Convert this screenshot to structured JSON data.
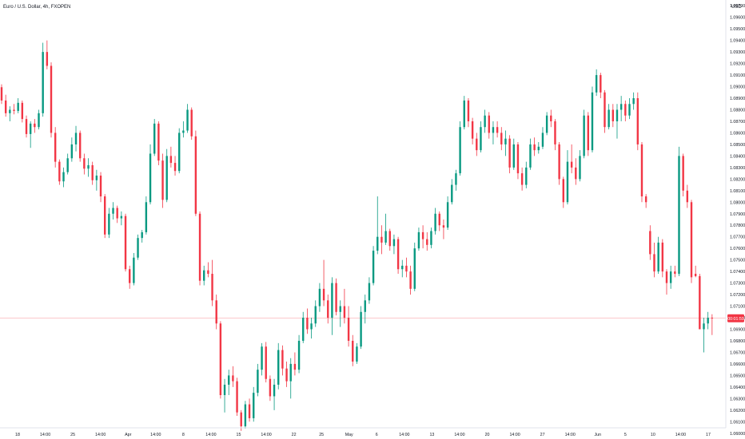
{
  "chart_data": {
    "type": "candlestick",
    "title": "Euro / U.S. Dollar, 4h, FXOPEN",
    "currency": "USD",
    "ylim": [
      1.0595,
      1.0975
    ],
    "grid": false,
    "colors": {
      "up": "#089981",
      "down": "#f23645",
      "price_line": "#f23645",
      "text": "#131722"
    },
    "y_ticks": [
      "1.09700",
      "1.09600",
      "1.09500",
      "1.09400",
      "1.09300",
      "1.09200",
      "1.09100",
      "1.09000",
      "1.08900",
      "1.08800",
      "1.08700",
      "1.08600",
      "1.08500",
      "1.08400",
      "1.08300",
      "1.08200",
      "1.08100",
      "1.08000",
      "1.07900",
      "1.07800",
      "1.07700",
      "1.07600",
      "1.07500",
      "1.07400",
      "1.07300",
      "1.07200",
      "1.07100",
      "1.07000",
      "1.06900",
      "1.06800",
      "1.06700",
      "1.06600",
      "1.06500",
      "1.06400",
      "1.06300",
      "1.06200",
      "1.06100",
      "1.06000",
      "1.05900",
      "1.05800"
    ],
    "x_ticks": [
      "18",
      "14:00",
      "25",
      "14:00",
      "Apr",
      "14:00",
      "8",
      "14:00",
      "15",
      "14:00",
      "22",
      "25",
      "May",
      "6",
      "14:00",
      "13",
      "14:00",
      "20",
      "14:00",
      "27",
      "14:00",
      "Jun",
      "5",
      "10",
      "14:00",
      "17"
    ],
    "last_price": {
      "value": 1.06995,
      "countdown": "00:01:59"
    },
    "candles": [
      {
        "o": 1.08995,
        "h": 1.0902,
        "l": 1.0885,
        "c": 1.0888
      },
      {
        "o": 1.0888,
        "h": 1.0893,
        "l": 1.0874,
        "c": 1.0877
      },
      {
        "o": 1.0877,
        "h": 1.0883,
        "l": 1.087,
        "c": 1.088
      },
      {
        "o": 1.088,
        "h": 1.0885,
        "l": 1.0876,
        "c": 1.0879
      },
      {
        "o": 1.0879,
        "h": 1.089,
        "l": 1.0877,
        "c": 1.0886
      },
      {
        "o": 1.0886,
        "h": 1.0888,
        "l": 1.0869,
        "c": 1.0872
      },
      {
        "o": 1.0872,
        "h": 1.0875,
        "l": 1.0856,
        "c": 1.0859
      },
      {
        "o": 1.0859,
        "h": 1.087,
        "l": 1.0847,
        "c": 1.0868
      },
      {
        "o": 1.0868,
        "h": 1.0872,
        "l": 1.086,
        "c": 1.0865
      },
      {
        "o": 1.0865,
        "h": 1.088,
        "l": 1.0863,
        "c": 1.0877
      },
      {
        "o": 1.0877,
        "h": 1.0938,
        "l": 1.0874,
        "c": 1.093
      },
      {
        "o": 1.093,
        "h": 1.094,
        "l": 1.0915,
        "c": 1.0918
      },
      {
        "o": 1.0918,
        "h": 1.0921,
        "l": 1.0856,
        "c": 1.086
      },
      {
        "o": 1.086,
        "h": 1.0865,
        "l": 1.083,
        "c": 1.0835
      },
      {
        "o": 1.0835,
        "h": 1.0837,
        "l": 1.0815,
        "c": 1.0818
      },
      {
        "o": 1.0818,
        "h": 1.083,
        "l": 1.0813,
        "c": 1.0826
      },
      {
        "o": 1.0826,
        "h": 1.0842,
        "l": 1.0824,
        "c": 1.0838
      },
      {
        "o": 1.0838,
        "h": 1.0856,
        "l": 1.0835,
        "c": 1.085
      },
      {
        "o": 1.085,
        "h": 1.0866,
        "l": 1.0844,
        "c": 1.086
      },
      {
        "o": 1.086,
        "h": 1.0862,
        "l": 1.0835,
        "c": 1.0838
      },
      {
        "o": 1.0838,
        "h": 1.0842,
        "l": 1.0824,
        "c": 1.0829
      },
      {
        "o": 1.0829,
        "h": 1.0838,
        "l": 1.0822,
        "c": 1.0832
      },
      {
        "o": 1.0832,
        "h": 1.0835,
        "l": 1.0815,
        "c": 1.0819
      },
      {
        "o": 1.0819,
        "h": 1.0828,
        "l": 1.081,
        "c": 1.0823
      },
      {
        "o": 1.0823,
        "h": 1.0826,
        "l": 1.08,
        "c": 1.0805
      },
      {
        "o": 1.0805,
        "h": 1.0807,
        "l": 1.0769,
        "c": 1.0772
      },
      {
        "o": 1.0772,
        "h": 1.0795,
        "l": 1.0769,
        "c": 1.079
      },
      {
        "o": 1.079,
        "h": 1.08,
        "l": 1.0785,
        "c": 1.0795
      },
      {
        "o": 1.0795,
        "h": 1.0797,
        "l": 1.0782,
        "c": 1.0786
      },
      {
        "o": 1.0786,
        "h": 1.0792,
        "l": 1.078,
        "c": 1.0788
      },
      {
        "o": 1.0788,
        "h": 1.079,
        "l": 1.074,
        "c": 1.0742
      },
      {
        "o": 1.0742,
        "h": 1.0745,
        "l": 1.0725,
        "c": 1.073
      },
      {
        "o": 1.073,
        "h": 1.0756,
        "l": 1.0728,
        "c": 1.0752
      },
      {
        "o": 1.0752,
        "h": 1.0772,
        "l": 1.075,
        "c": 1.0769
      },
      {
        "o": 1.0769,
        "h": 1.0776,
        "l": 1.0765,
        "c": 1.0774
      },
      {
        "o": 1.0774,
        "h": 1.0805,
        "l": 1.0772,
        "c": 1.08
      },
      {
        "o": 1.08,
        "h": 1.085,
        "l": 1.0798,
        "c": 1.0842
      },
      {
        "o": 1.0842,
        "h": 1.0872,
        "l": 1.084,
        "c": 1.0868
      },
      {
        "o": 1.0868,
        "h": 1.087,
        "l": 1.0832,
        "c": 1.0836
      },
      {
        "o": 1.0836,
        "h": 1.0842,
        "l": 1.0795,
        "c": 1.0802
      },
      {
        "o": 1.0802,
        "h": 1.0846,
        "l": 1.08,
        "c": 1.084
      },
      {
        "o": 1.084,
        "h": 1.0848,
        "l": 1.083,
        "c": 1.0834
      },
      {
        "o": 1.0834,
        "h": 1.084,
        "l": 1.0823,
        "c": 1.0827
      },
      {
        "o": 1.0827,
        "h": 1.0864,
        "l": 1.0825,
        "c": 1.086
      },
      {
        "o": 1.086,
        "h": 1.087,
        "l": 1.0856,
        "c": 1.0862
      },
      {
        "o": 1.0862,
        "h": 1.0885,
        "l": 1.086,
        "c": 1.088
      },
      {
        "o": 1.088,
        "h": 1.0882,
        "l": 1.0854,
        "c": 1.0857
      },
      {
        "o": 1.0857,
        "h": 1.0862,
        "l": 1.0788,
        "c": 1.079
      },
      {
        "o": 1.079,
        "h": 1.0792,
        "l": 1.0728,
        "c": 1.0732
      },
      {
        "o": 1.0732,
        "h": 1.0745,
        "l": 1.0728,
        "c": 1.0741
      },
      {
        "o": 1.0741,
        "h": 1.0748,
        "l": 1.0735,
        "c": 1.0738
      },
      {
        "o": 1.0738,
        "h": 1.075,
        "l": 1.071,
        "c": 1.0715
      },
      {
        "o": 1.0715,
        "h": 1.072,
        "l": 1.069,
        "c": 1.0695
      },
      {
        "o": 1.0695,
        "h": 1.0697,
        "l": 1.063,
        "c": 1.0633
      },
      {
        "o": 1.0633,
        "h": 1.0647,
        "l": 1.0618,
        "c": 1.0642
      },
      {
        "o": 1.0642,
        "h": 1.0655,
        "l": 1.0633,
        "c": 1.065
      },
      {
        "o": 1.065,
        "h": 1.0658,
        "l": 1.064,
        "c": 1.0645
      },
      {
        "o": 1.0645,
        "h": 1.0648,
        "l": 1.0615,
        "c": 1.0618
      },
      {
        "o": 1.0618,
        "h": 1.062,
        "l": 1.0602,
        "c": 1.0606
      },
      {
        "o": 1.0606,
        "h": 1.0628,
        "l": 1.0604,
        "c": 1.0625
      },
      {
        "o": 1.0625,
        "h": 1.063,
        "l": 1.061,
        "c": 1.0613
      },
      {
        "o": 1.0613,
        "h": 1.064,
        "l": 1.061,
        "c": 1.0635
      },
      {
        "o": 1.0635,
        "h": 1.066,
        "l": 1.0632,
        "c": 1.0655
      },
      {
        "o": 1.0655,
        "h": 1.0678,
        "l": 1.065,
        "c": 1.0675
      },
      {
        "o": 1.0675,
        "h": 1.0679,
        "l": 1.0644,
        "c": 1.0647
      },
      {
        "o": 1.0647,
        "h": 1.065,
        "l": 1.0628,
        "c": 1.0632
      },
      {
        "o": 1.0632,
        "h": 1.0647,
        "l": 1.062,
        "c": 1.0642
      },
      {
        "o": 1.0642,
        "h": 1.0678,
        "l": 1.0638,
        "c": 1.0672
      },
      {
        "o": 1.0672,
        "h": 1.0676,
        "l": 1.065,
        "c": 1.0656
      },
      {
        "o": 1.0656,
        "h": 1.0662,
        "l": 1.064,
        "c": 1.0645
      },
      {
        "o": 1.0645,
        "h": 1.0665,
        "l": 1.063,
        "c": 1.066
      },
      {
        "o": 1.066,
        "h": 1.067,
        "l": 1.065,
        "c": 1.0655
      },
      {
        "o": 1.0655,
        "h": 1.0685,
        "l": 1.0652,
        "c": 1.068
      },
      {
        "o": 1.068,
        "h": 1.0705,
        "l": 1.0678,
        "c": 1.07
      },
      {
        "o": 1.07,
        "h": 1.0708,
        "l": 1.0686,
        "c": 1.069
      },
      {
        "o": 1.069,
        "h": 1.07,
        "l": 1.0682,
        "c": 1.0695
      },
      {
        "o": 1.0695,
        "h": 1.0715,
        "l": 1.0692,
        "c": 1.071
      },
      {
        "o": 1.071,
        "h": 1.073,
        "l": 1.0705,
        "c": 1.0725
      },
      {
        "o": 1.0725,
        "h": 1.075,
        "l": 1.071,
        "c": 1.0715
      },
      {
        "o": 1.0715,
        "h": 1.072,
        "l": 1.0695,
        "c": 1.07
      },
      {
        "o": 1.07,
        "h": 1.0735,
        "l": 1.0685,
        "c": 1.073
      },
      {
        "o": 1.073,
        "h": 1.0734,
        "l": 1.0702,
        "c": 1.0705
      },
      {
        "o": 1.0705,
        "h": 1.0715,
        "l": 1.0692,
        "c": 1.071
      },
      {
        "o": 1.071,
        "h": 1.0725,
        "l": 1.0695,
        "c": 1.07
      },
      {
        "o": 1.07,
        "h": 1.071,
        "l": 1.0675,
        "c": 1.068
      },
      {
        "o": 1.068,
        "h": 1.0685,
        "l": 1.0658,
        "c": 1.0662
      },
      {
        "o": 1.0662,
        "h": 1.0678,
        "l": 1.066,
        "c": 1.0675
      },
      {
        "o": 1.0675,
        "h": 1.071,
        "l": 1.0673,
        "c": 1.0705
      },
      {
        "o": 1.0705,
        "h": 1.072,
        "l": 1.0695,
        "c": 1.0715
      },
      {
        "o": 1.0715,
        "h": 1.0735,
        "l": 1.0712,
        "c": 1.073
      },
      {
        "o": 1.073,
        "h": 1.0762,
        "l": 1.0728,
        "c": 1.0758
      },
      {
        "o": 1.0758,
        "h": 1.0805,
        "l": 1.0755,
        "c": 1.077
      },
      {
        "o": 1.077,
        "h": 1.078,
        "l": 1.0755,
        "c": 1.0765
      },
      {
        "o": 1.0765,
        "h": 1.079,
        "l": 1.0763,
        "c": 1.0775
      },
      {
        "o": 1.0775,
        "h": 1.0777,
        "l": 1.0758,
        "c": 1.0762
      },
      {
        "o": 1.0762,
        "h": 1.0772,
        "l": 1.0755,
        "c": 1.0768
      },
      {
        "o": 1.0768,
        "h": 1.077,
        "l": 1.0738,
        "c": 1.0742
      },
      {
        "o": 1.0742,
        "h": 1.075,
        "l": 1.0735,
        "c": 1.0745
      },
      {
        "o": 1.0745,
        "h": 1.0752,
        "l": 1.0735,
        "c": 1.074
      },
      {
        "o": 1.074,
        "h": 1.0745,
        "l": 1.072,
        "c": 1.0725
      },
      {
        "o": 1.0725,
        "h": 1.0765,
        "l": 1.0723,
        "c": 1.076
      },
      {
        "o": 1.076,
        "h": 1.0778,
        "l": 1.0758,
        "c": 1.0774
      },
      {
        "o": 1.0774,
        "h": 1.078,
        "l": 1.076,
        "c": 1.0768
      },
      {
        "o": 1.0768,
        "h": 1.0774,
        "l": 1.0758,
        "c": 1.0763
      },
      {
        "o": 1.0763,
        "h": 1.0778,
        "l": 1.076,
        "c": 1.0775
      },
      {
        "o": 1.0775,
        "h": 1.0795,
        "l": 1.0772,
        "c": 1.079
      },
      {
        "o": 1.079,
        "h": 1.0792,
        "l": 1.0775,
        "c": 1.078
      },
      {
        "o": 1.078,
        "h": 1.0785,
        "l": 1.0768,
        "c": 1.0778
      },
      {
        "o": 1.0778,
        "h": 1.0805,
        "l": 1.0776,
        "c": 1.08
      },
      {
        "o": 1.08,
        "h": 1.082,
        "l": 1.0798,
        "c": 1.0815
      },
      {
        "o": 1.0815,
        "h": 1.0828,
        "l": 1.081,
        "c": 1.0825
      },
      {
        "o": 1.0825,
        "h": 1.087,
        "l": 1.0823,
        "c": 1.0865
      },
      {
        "o": 1.0865,
        "h": 1.0892,
        "l": 1.0863,
        "c": 1.0888
      },
      {
        "o": 1.0888,
        "h": 1.089,
        "l": 1.0865,
        "c": 1.087
      },
      {
        "o": 1.087,
        "h": 1.0873,
        "l": 1.085,
        "c": 1.0855
      },
      {
        "o": 1.0855,
        "h": 1.086,
        "l": 1.084,
        "c": 1.0845
      },
      {
        "o": 1.0845,
        "h": 1.087,
        "l": 1.0843,
        "c": 1.0865
      },
      {
        "o": 1.0865,
        "h": 1.088,
        "l": 1.086,
        "c": 1.0875
      },
      {
        "o": 1.0875,
        "h": 1.0878,
        "l": 1.0855,
        "c": 1.086
      },
      {
        "o": 1.086,
        "h": 1.087,
        "l": 1.085,
        "c": 1.0865
      },
      {
        "o": 1.0865,
        "h": 1.087,
        "l": 1.0856,
        "c": 1.086
      },
      {
        "o": 1.086,
        "h": 1.0865,
        "l": 1.0845,
        "c": 1.085
      },
      {
        "o": 1.085,
        "h": 1.0862,
        "l": 1.084,
        "c": 1.0855
      },
      {
        "o": 1.0855,
        "h": 1.0858,
        "l": 1.0825,
        "c": 1.083
      },
      {
        "o": 1.083,
        "h": 1.0855,
        "l": 1.0828,
        "c": 1.085
      },
      {
        "o": 1.085,
        "h": 1.0852,
        "l": 1.082,
        "c": 1.0825
      },
      {
        "o": 1.0825,
        "h": 1.083,
        "l": 1.081,
        "c": 1.0815
      },
      {
        "o": 1.0815,
        "h": 1.0835,
        "l": 1.0812,
        "c": 1.083
      },
      {
        "o": 1.083,
        "h": 1.0855,
        "l": 1.0828,
        "c": 1.085
      },
      {
        "o": 1.085,
        "h": 1.0856,
        "l": 1.084,
        "c": 1.0845
      },
      {
        "o": 1.0845,
        "h": 1.0852,
        "l": 1.0842,
        "c": 1.0848
      },
      {
        "o": 1.0848,
        "h": 1.0865,
        "l": 1.0846,
        "c": 1.086
      },
      {
        "o": 1.086,
        "h": 1.0878,
        "l": 1.0858,
        "c": 1.0875
      },
      {
        "o": 1.0875,
        "h": 1.088,
        "l": 1.0865,
        "c": 1.087
      },
      {
        "o": 1.087,
        "h": 1.0872,
        "l": 1.0845,
        "c": 1.085
      },
      {
        "o": 1.085,
        "h": 1.0852,
        "l": 1.0815,
        "c": 1.082
      },
      {
        "o": 1.082,
        "h": 1.0822,
        "l": 1.0795,
        "c": 1.08
      },
      {
        "o": 1.08,
        "h": 1.0845,
        "l": 1.0798,
        "c": 1.0835
      },
      {
        "o": 1.0835,
        "h": 1.085,
        "l": 1.0825,
        "c": 1.083
      },
      {
        "o": 1.083,
        "h": 1.0838,
        "l": 1.0815,
        "c": 1.082
      },
      {
        "o": 1.082,
        "h": 1.0845,
        "l": 1.0818,
        "c": 1.084
      },
      {
        "o": 1.084,
        "h": 1.088,
        "l": 1.0838,
        "c": 1.0875
      },
      {
        "o": 1.0875,
        "h": 1.0878,
        "l": 1.084,
        "c": 1.0845
      },
      {
        "o": 1.0845,
        "h": 1.09,
        "l": 1.0843,
        "c": 1.0895
      },
      {
        "o": 1.0895,
        "h": 1.0915,
        "l": 1.0892,
        "c": 1.091
      },
      {
        "o": 1.091,
        "h": 1.0912,
        "l": 1.089,
        "c": 1.0895
      },
      {
        "o": 1.0895,
        "h": 1.0897,
        "l": 1.086,
        "c": 1.0865
      },
      {
        "o": 1.0865,
        "h": 1.0885,
        "l": 1.0863,
        "c": 1.088
      },
      {
        "o": 1.088,
        "h": 1.0885,
        "l": 1.0865,
        "c": 1.087
      },
      {
        "o": 1.087,
        "h": 1.0885,
        "l": 1.0855,
        "c": 1.088
      },
      {
        "o": 1.088,
        "h": 1.0892,
        "l": 1.087,
        "c": 1.0885
      },
      {
        "o": 1.0885,
        "h": 1.0888,
        "l": 1.087,
        "c": 1.0875
      },
      {
        "o": 1.0875,
        "h": 1.089,
        "l": 1.0872,
        "c": 1.0885
      },
      {
        "o": 1.0885,
        "h": 1.0895,
        "l": 1.088,
        "c": 1.089
      },
      {
        "o": 1.089,
        "h": 1.0895,
        "l": 1.0845,
        "c": 1.085
      },
      {
        "o": 1.085,
        "h": 1.0852,
        "l": 1.08,
        "c": 1.0805
      },
      {
        "o": 1.0805,
        "h": 1.0807,
        "l": 1.0795,
        "c": 1.08
      },
      {
        "o": 1.0775,
        "h": 1.078,
        "l": 1.075,
        "c": 1.0755
      },
      {
        "o": 1.0755,
        "h": 1.0765,
        "l": 1.0735,
        "c": 1.074
      },
      {
        "o": 1.074,
        "h": 1.077,
        "l": 1.0738,
        "c": 1.0765
      },
      {
        "o": 1.0765,
        "h": 1.0768,
        "l": 1.0735,
        "c": 1.074
      },
      {
        "o": 1.074,
        "h": 1.0742,
        "l": 1.072,
        "c": 1.073
      },
      {
        "o": 1.073,
        "h": 1.0745,
        "l": 1.0725,
        "c": 1.074
      },
      {
        "o": 1.074,
        "h": 1.0745,
        "l": 1.0735,
        "c": 1.0738
      },
      {
        "o": 1.0738,
        "h": 1.0848,
        "l": 1.0736,
        "c": 1.084
      },
      {
        "o": 1.084,
        "h": 1.0842,
        "l": 1.0805,
        "c": 1.081
      },
      {
        "o": 1.081,
        "h": 1.0815,
        "l": 1.0795,
        "c": 1.08
      },
      {
        "o": 1.08,
        "h": 1.0802,
        "l": 1.073,
        "c": 1.0735
      },
      {
        "o": 1.0738,
        "h": 1.0745,
        "l": 1.0735,
        "c": 1.0736
      },
      {
        "o": 1.0736,
        "h": 1.0738,
        "l": 1.069,
        "c": 1.069
      },
      {
        "o": 1.069,
        "h": 1.07,
        "l": 1.067,
        "c": 1.0695
      },
      {
        "o": 1.0695,
        "h": 1.0705,
        "l": 1.069,
        "c": 1.07
      },
      {
        "o": 1.07,
        "h": 1.0703,
        "l": 1.0685,
        "c": 1.06995
      }
    ]
  }
}
